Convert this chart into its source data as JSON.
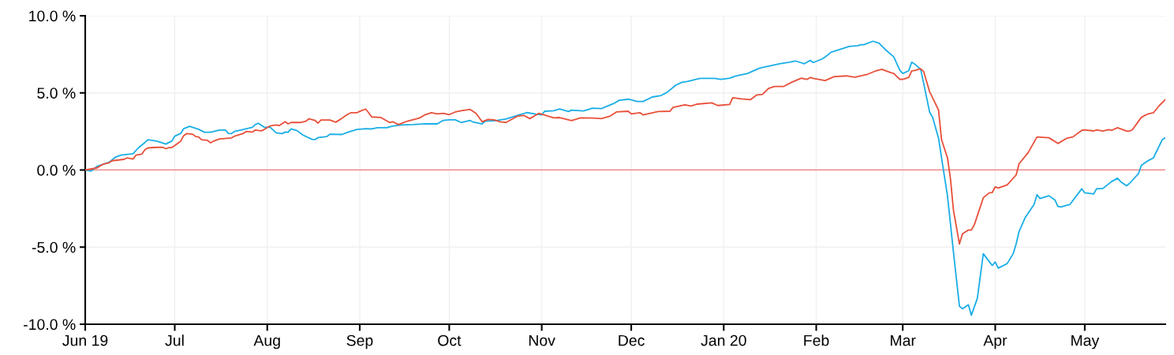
{
  "chart_data": {
    "type": "line",
    "xlim": [
      "2019-06-01",
      "2020-05-28"
    ],
    "xticks": [
      {
        "value": "2019-06-01",
        "label": "Jun 19"
      },
      {
        "value": "2019-07-01",
        "label": "Jul"
      },
      {
        "value": "2019-08-01",
        "label": "Aug"
      },
      {
        "value": "2019-09-01",
        "label": "Sep"
      },
      {
        "value": "2019-10-01",
        "label": "Oct"
      },
      {
        "value": "2019-11-01",
        "label": "Nov"
      },
      {
        "value": "2019-12-01",
        "label": "Dec"
      },
      {
        "value": "2020-01-01",
        "label": "Jan 20"
      },
      {
        "value": "2020-02-01",
        "label": "Feb"
      },
      {
        "value": "2020-03-01",
        "label": "Mar"
      },
      {
        "value": "2020-04-01",
        "label": "Apr"
      },
      {
        "value": "2020-05-01",
        "label": "May"
      }
    ],
    "ylim": [
      -10,
      10
    ],
    "yticks": [
      {
        "value": -10,
        "label": "-10.0 %"
      },
      {
        "value": -5,
        "label": "-5.0 %"
      },
      {
        "value": 0,
        "label": "0.0 %"
      },
      {
        "value": 5,
        "label": "5.0 %"
      },
      {
        "value": 10,
        "label": "10.0 %"
      }
    ],
    "grid": true,
    "marker": "none",
    "line_style": "solid",
    "ref_lines": [
      {
        "axis": "y",
        "value": 0,
        "color": "#ee7b7b"
      }
    ],
    "series": [
      {
        "color": "#1aaee6",
        "x": [
          "2019-06-01",
          "2019-06-03",
          "2019-06-05",
          "2019-06-09",
          "2019-06-11",
          "2019-06-13",
          "2019-06-17",
          "2019-06-19",
          "2019-06-21",
          "2019-06-22",
          "2019-06-25",
          "2019-06-28",
          "2019-06-30",
          "2019-07-01",
          "2019-07-03",
          "2019-07-04",
          "2019-07-06",
          "2019-07-09",
          "2019-07-11",
          "2019-07-13",
          "2019-07-16",
          "2019-07-18",
          "2019-07-19",
          "2019-07-20",
          "2019-07-21",
          "2019-07-24",
          "2019-07-27",
          "2019-07-28",
          "2019-07-29",
          "2019-07-31",
          "2019-08-02",
          "2019-08-04",
          "2019-08-06",
          "2019-08-07",
          "2019-08-08",
          "2019-08-09",
          "2019-08-11",
          "2019-08-13",
          "2019-08-16",
          "2019-08-17",
          "2019-08-18",
          "2019-08-21",
          "2019-08-22",
          "2019-08-26",
          "2019-08-28",
          "2019-08-31",
          "2019-09-03",
          "2019-09-05",
          "2019-09-07",
          "2019-09-10",
          "2019-09-12",
          "2019-09-15",
          "2019-09-19",
          "2019-09-23",
          "2019-09-27",
          "2019-09-29",
          "2019-10-01",
          "2019-10-03",
          "2019-10-05",
          "2019-10-08",
          "2019-10-09",
          "2019-10-12",
          "2019-10-13",
          "2019-10-17",
          "2019-10-20",
          "2019-10-24",
          "2019-10-27",
          "2019-10-30",
          "2019-11-01",
          "2019-11-02",
          "2019-11-05",
          "2019-11-07",
          "2019-11-10",
          "2019-11-11",
          "2019-11-15",
          "2019-11-18",
          "2019-11-21",
          "2019-11-25",
          "2019-11-27",
          "2019-11-30",
          "2019-12-03",
          "2019-12-05",
          "2019-12-08",
          "2019-12-11",
          "2019-12-13",
          "2019-12-16",
          "2019-12-18",
          "2019-12-20",
          "2019-12-24",
          "2019-12-29",
          "2019-12-31",
          "2020-01-03",
          "2020-01-05",
          "2020-01-09",
          "2020-01-13",
          "2020-01-16",
          "2020-01-20",
          "2020-01-23",
          "2020-01-25",
          "2020-01-28",
          "2020-01-30",
          "2020-01-31",
          "2020-02-03",
          "2020-02-04",
          "2020-02-06",
          "2020-02-10",
          "2020-02-12",
          "2020-02-15",
          "2020-02-16",
          "2020-02-17",
          "2020-02-20",
          "2020-02-22",
          "2020-02-24",
          "2020-02-26",
          "2020-02-27",
          "2020-02-29",
          "2020-03-01",
          "2020-03-03",
          "2020-03-04",
          "2020-03-05",
          "2020-03-07",
          "2020-03-08",
          "2020-03-10",
          "2020-03-11",
          "2020-03-13",
          "2020-03-14",
          "2020-03-16",
          "2020-03-18",
          "2020-03-20",
          "2020-03-21",
          "2020-03-23",
          "2020-03-24",
          "2020-03-26",
          "2020-03-28",
          "2020-03-30",
          "2020-03-31",
          "2020-04-01",
          "2020-04-02",
          "2020-04-05",
          "2020-04-07",
          "2020-04-08",
          "2020-04-09",
          "2020-04-11",
          "2020-04-14",
          "2020-04-15",
          "2020-04-16",
          "2020-04-19",
          "2020-04-21",
          "2020-04-22",
          "2020-04-23",
          "2020-04-25",
          "2020-04-26",
          "2020-04-29",
          "2020-04-30",
          "2020-05-01",
          "2020-05-04",
          "2020-05-05",
          "2020-05-07",
          "2020-05-10",
          "2020-05-12",
          "2020-05-13",
          "2020-05-15",
          "2020-05-16",
          "2020-05-19",
          "2020-05-20",
          "2020-05-22",
          "2020-05-24",
          "2020-05-27",
          "2020-05-28"
        ],
        "values": [
          0.0,
          -0.07,
          0.24,
          0.5,
          0.82,
          0.96,
          1.05,
          1.47,
          1.78,
          1.96,
          1.87,
          1.68,
          1.87,
          2.19,
          2.37,
          2.68,
          2.83,
          2.64,
          2.45,
          2.45,
          2.59,
          2.59,
          2.37,
          2.36,
          2.5,
          2.63,
          2.77,
          2.95,
          3.03,
          2.77,
          2.77,
          2.41,
          2.36,
          2.46,
          2.45,
          2.66,
          2.55,
          2.26,
          1.99,
          1.97,
          2.1,
          2.17,
          2.32,
          2.3,
          2.45,
          2.63,
          2.68,
          2.66,
          2.74,
          2.74,
          2.84,
          2.92,
          2.95,
          3.0,
          2.99,
          3.22,
          3.25,
          3.25,
          3.08,
          3.21,
          3.11,
          2.99,
          3.16,
          3.21,
          3.3,
          3.55,
          3.72,
          3.62,
          3.57,
          3.81,
          3.84,
          3.96,
          3.79,
          3.88,
          3.83,
          4.01,
          3.98,
          4.3,
          4.52,
          4.59,
          4.44,
          4.44,
          4.73,
          4.83,
          5.03,
          5.51,
          5.68,
          5.75,
          5.94,
          5.94,
          5.88,
          5.95,
          6.09,
          6.26,
          6.6,
          6.73,
          6.9,
          6.99,
          7.07,
          6.89,
          7.11,
          6.97,
          7.2,
          7.33,
          7.64,
          7.88,
          8.01,
          8.06,
          8.13,
          8.13,
          8.35,
          8.23,
          7.84,
          7.5,
          7.33,
          6.48,
          6.26,
          6.43,
          6.99,
          6.87,
          6.53,
          5.63,
          3.76,
          3.42,
          2.06,
          0.78,
          -1.68,
          -5.34,
          -8.83,
          -9.0,
          -8.74,
          -9.42,
          -8.32,
          -5.43,
          -5.94,
          -6.19,
          -5.97,
          -6.36,
          -6.07,
          -5.43,
          -4.8,
          -3.98,
          -3.1,
          -2.24,
          -1.6,
          -1.85,
          -1.67,
          -1.94,
          -2.36,
          -2.4,
          -2.28,
          -2.24,
          -1.48,
          -1.22,
          -1.48,
          -1.55,
          -1.21,
          -1.21,
          -0.75,
          -0.53,
          -0.75,
          -1.02,
          -0.87,
          -0.24,
          0.31,
          0.58,
          0.78,
          1.97,
          2.09
        ]
      },
      {
        "color": "#e8503a",
        "x": [
          "2019-06-01",
          "2019-06-05",
          "2019-06-07",
          "2019-06-09",
          "2019-06-10",
          "2019-06-14",
          "2019-06-15",
          "2019-06-17",
          "2019-06-18",
          "2019-06-20",
          "2019-06-21",
          "2019-06-22",
          "2019-06-25",
          "2019-06-27",
          "2019-06-28",
          "2019-06-29",
          "2019-06-30",
          "2019-07-01",
          "2019-07-03",
          "2019-07-04",
          "2019-07-05",
          "2019-07-07",
          "2019-07-08",
          "2019-07-09",
          "2019-07-10",
          "2019-07-12",
          "2019-07-13",
          "2019-07-14",
          "2019-07-16",
          "2019-07-20",
          "2019-07-21",
          "2019-07-24",
          "2019-07-25",
          "2019-07-27",
          "2019-07-28",
          "2019-07-30",
          "2019-07-31",
          "2019-08-02",
          "2019-08-04",
          "2019-08-05",
          "2019-08-07",
          "2019-08-08",
          "2019-08-09",
          "2019-08-12",
          "2019-08-14",
          "2019-08-15",
          "2019-08-17",
          "2019-08-18",
          "2019-08-19",
          "2019-08-22",
          "2019-08-24",
          "2019-08-26",
          "2019-08-28",
          "2019-08-29",
          "2019-08-31",
          "2019-09-01",
          "2019-09-03",
          "2019-09-04",
          "2019-09-05",
          "2019-09-08",
          "2019-09-11",
          "2019-09-12",
          "2019-09-14",
          "2019-09-17",
          "2019-09-20",
          "2019-09-21",
          "2019-09-23",
          "2019-09-25",
          "2019-09-27",
          "2019-09-29",
          "2019-10-01",
          "2019-10-03",
          "2019-10-05",
          "2019-10-08",
          "2019-10-10",
          "2019-10-12",
          "2019-10-14",
          "2019-10-16",
          "2019-10-18",
          "2019-10-20",
          "2019-10-24",
          "2019-10-26",
          "2019-10-28",
          "2019-10-31",
          "2019-11-05",
          "2019-11-07",
          "2019-11-11",
          "2019-11-14",
          "2019-11-18",
          "2019-11-21",
          "2019-11-24",
          "2019-11-26",
          "2019-11-30",
          "2019-12-01",
          "2019-12-04",
          "2019-12-05",
          "2019-12-10",
          "2019-12-14",
          "2019-12-15",
          "2019-12-19",
          "2019-12-21",
          "2019-12-23",
          "2019-12-28",
          "2019-12-30",
          "2020-01-03",
          "2020-01-04",
          "2020-01-07",
          "2020-01-10",
          "2020-01-12",
          "2020-01-14",
          "2020-01-16",
          "2020-01-18",
          "2020-01-21",
          "2020-01-24",
          "2020-01-27",
          "2020-01-29",
          "2020-01-30",
          "2020-01-31",
          "2020-02-04",
          "2020-02-07",
          "2020-02-11",
          "2020-02-14",
          "2020-02-18",
          "2020-02-21",
          "2020-02-23",
          "2020-02-26",
          "2020-02-27",
          "2020-02-29",
          "2020-03-01",
          "2020-03-03",
          "2020-03-04",
          "2020-03-05",
          "2020-03-07",
          "2020-03-08",
          "2020-03-10",
          "2020-03-11",
          "2020-03-13",
          "2020-03-14",
          "2020-03-16",
          "2020-03-17",
          "2020-03-18",
          "2020-03-20",
          "2020-03-21",
          "2020-03-23",
          "2020-03-24",
          "2020-03-25",
          "2020-03-28",
          "2020-03-30",
          "2020-03-31",
          "2020-04-01",
          "2020-04-02",
          "2020-04-05",
          "2020-04-08",
          "2020-04-09",
          "2020-04-12",
          "2020-04-15",
          "2020-04-19",
          "2020-04-22",
          "2020-04-25",
          "2020-04-27",
          "2020-04-30",
          "2020-05-01",
          "2020-05-04",
          "2020-05-05",
          "2020-05-07",
          "2020-05-09",
          "2020-05-10",
          "2020-05-12",
          "2020-05-15",
          "2020-05-16",
          "2020-05-17",
          "2020-05-20",
          "2020-05-22",
          "2020-05-24",
          "2020-05-26",
          "2020-05-28"
        ],
        "values": [
          0.0,
          0.14,
          0.38,
          0.47,
          0.6,
          0.69,
          0.78,
          0.71,
          0.96,
          1.03,
          1.32,
          1.43,
          1.47,
          1.47,
          1.38,
          1.45,
          1.45,
          1.59,
          1.87,
          2.23,
          2.36,
          2.32,
          2.17,
          2.14,
          1.96,
          1.92,
          1.76,
          1.87,
          2.01,
          2.08,
          2.19,
          2.37,
          2.5,
          2.46,
          2.59,
          2.54,
          2.63,
          2.86,
          2.92,
          2.88,
          3.13,
          2.99,
          3.08,
          3.08,
          3.17,
          3.32,
          3.22,
          3.04,
          3.24,
          3.24,
          3.1,
          3.35,
          3.62,
          3.71,
          3.71,
          3.8,
          3.95,
          3.71,
          3.44,
          3.41,
          3.08,
          3.13,
          2.95,
          3.17,
          3.32,
          3.37,
          3.59,
          3.71,
          3.64,
          3.68,
          3.59,
          3.76,
          3.84,
          3.93,
          3.67,
          3.13,
          3.28,
          3.25,
          3.13,
          3.08,
          3.5,
          3.54,
          3.33,
          3.67,
          3.38,
          3.4,
          3.2,
          3.38,
          3.37,
          3.33,
          3.5,
          3.76,
          3.81,
          3.64,
          3.71,
          3.57,
          3.79,
          3.81,
          4.06,
          4.23,
          4.15,
          4.27,
          4.35,
          4.18,
          4.25,
          4.69,
          4.61,
          4.56,
          4.86,
          4.9,
          5.29,
          5.41,
          5.41,
          5.71,
          5.95,
          5.88,
          6.0,
          5.94,
          5.8,
          6.05,
          6.1,
          6.02,
          6.19,
          6.43,
          6.53,
          6.31,
          6.26,
          5.88,
          5.88,
          6.0,
          6.43,
          6.45,
          6.56,
          6.39,
          5.07,
          4.69,
          3.88,
          1.97,
          0.78,
          -0.58,
          -2.62,
          -4.8,
          -4.15,
          -3.89,
          -3.89,
          -3.55,
          -1.8,
          -1.48,
          -1.46,
          -1.09,
          -1.17,
          -0.97,
          -0.32,
          0.41,
          1.12,
          2.14,
          2.09,
          1.72,
          2.06,
          2.14,
          2.57,
          2.6,
          2.53,
          2.6,
          2.53,
          2.62,
          2.57,
          2.74,
          2.52,
          2.52,
          2.62,
          3.42,
          3.62,
          3.71,
          4.18,
          4.56
        ]
      }
    ]
  }
}
